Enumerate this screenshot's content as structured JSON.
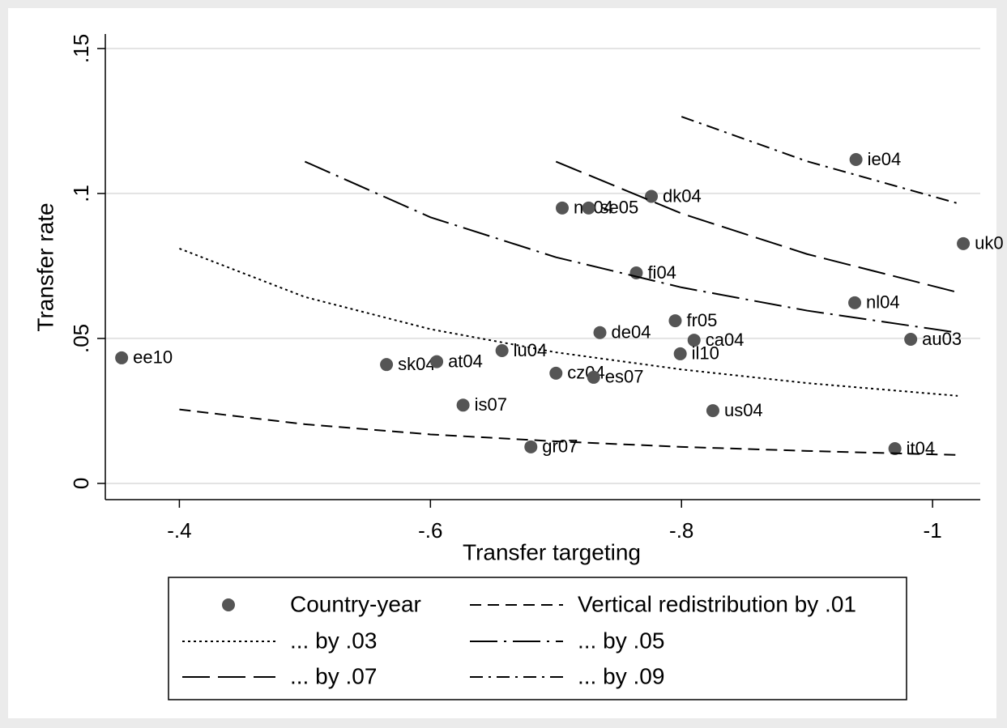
{
  "chart_data": {
    "type": "scatter",
    "x_label": "Transfer targeting",
    "y_label": "Transfer rate",
    "xlim": [
      -0.341,
      -1.038
    ],
    "ylim": [
      -0.0056,
      0.155
    ],
    "xticks": [
      {
        "value": -0.4,
        "label": "-.4"
      },
      {
        "value": -0.6,
        "label": "-.6"
      },
      {
        "value": -0.8,
        "label": "-.8"
      },
      {
        "value": -1,
        "label": "-1"
      }
    ],
    "yticks": [
      0,
      {
        "value": 0.05,
        "label": ".05"
      },
      {
        "value": 0.1,
        "label": ".1"
      },
      {
        "value": 0.15,
        "label": ".15"
      }
    ],
    "grid": true,
    "series": [
      {
        "name": "Country-year",
        "color": "#555555",
        "mark": "point",
        "labels": [
          "ee10",
          "sk04",
          "at04",
          "lu04",
          "is07",
          "gr07",
          "cz04",
          "es07",
          "de04",
          "no04",
          "se05",
          "dk04",
          "fi04",
          "fr05",
          "ca04",
          "il10",
          "us04",
          "ie04",
          "uk0",
          "nl04",
          "au03",
          "it04"
        ],
        "x": [
          -0.354,
          -0.565,
          -0.605,
          -0.657,
          -0.626,
          -0.68,
          -0.7,
          -0.73,
          -0.735,
          -0.705,
          -0.726,
          -0.776,
          -0.764,
          -0.795,
          -0.81,
          -0.799,
          -0.825,
          -0.939,
          -1.0245,
          -0.938,
          -0.9826,
          -0.97
        ],
        "values": [
          0.0433,
          0.041,
          0.042,
          0.0458,
          0.027,
          0.0126,
          0.038,
          0.0366,
          0.052,
          0.095,
          0.095,
          0.099,
          0.0726,
          0.0561,
          0.0494,
          0.0447,
          0.0251,
          0.1117,
          0.0827,
          0.0623,
          0.0497,
          0.012
        ]
      },
      {
        "name": "Vertical redistribution by .01",
        "color": "#000000",
        "mark": "line",
        "linestyle": "dash",
        "x": [
          -0.4,
          -0.5,
          -0.6,
          -0.7,
          -0.8,
          -0.9,
          -1.02
        ],
        "values": [
          0.0255,
          0.0204,
          0.0169,
          0.0145,
          0.0126,
          0.0112,
          0.0098
        ]
      },
      {
        "name": "... by .03",
        "color": "#000000",
        "mark": "line",
        "linestyle": "dot",
        "x": [
          -0.4,
          -0.5,
          -0.6,
          -0.7,
          -0.8,
          -0.9,
          -1.02
        ],
        "values": [
          0.081,
          0.0643,
          0.0532,
          0.0452,
          0.0393,
          0.0346,
          0.0302
        ]
      },
      {
        "name": "... by .05",
        "color": "#000000",
        "mark": "line",
        "linestyle": "longdash-dot",
        "x": [
          -0.5,
          -0.6,
          -0.7,
          -0.8,
          -0.9,
          -1.02
        ],
        "values": [
          0.111,
          0.0918,
          0.078,
          0.0676,
          0.0596,
          0.052
        ]
      },
      {
        "name": "... by .07",
        "color": "#000000",
        "mark": "line",
        "linestyle": "longdash",
        "x": [
          -0.7,
          -0.8,
          -0.9,
          -1.02
        ],
        "values": [
          0.111,
          0.0931,
          0.0791,
          0.0659
        ]
      },
      {
        "name": "... by .09",
        "color": "#000000",
        "mark": "line",
        "linestyle": "dash-dot",
        "x": [
          -0.8,
          -0.9,
          -1.02
        ],
        "values": [
          0.1265,
          0.1111,
          0.0966
        ]
      }
    ]
  }
}
